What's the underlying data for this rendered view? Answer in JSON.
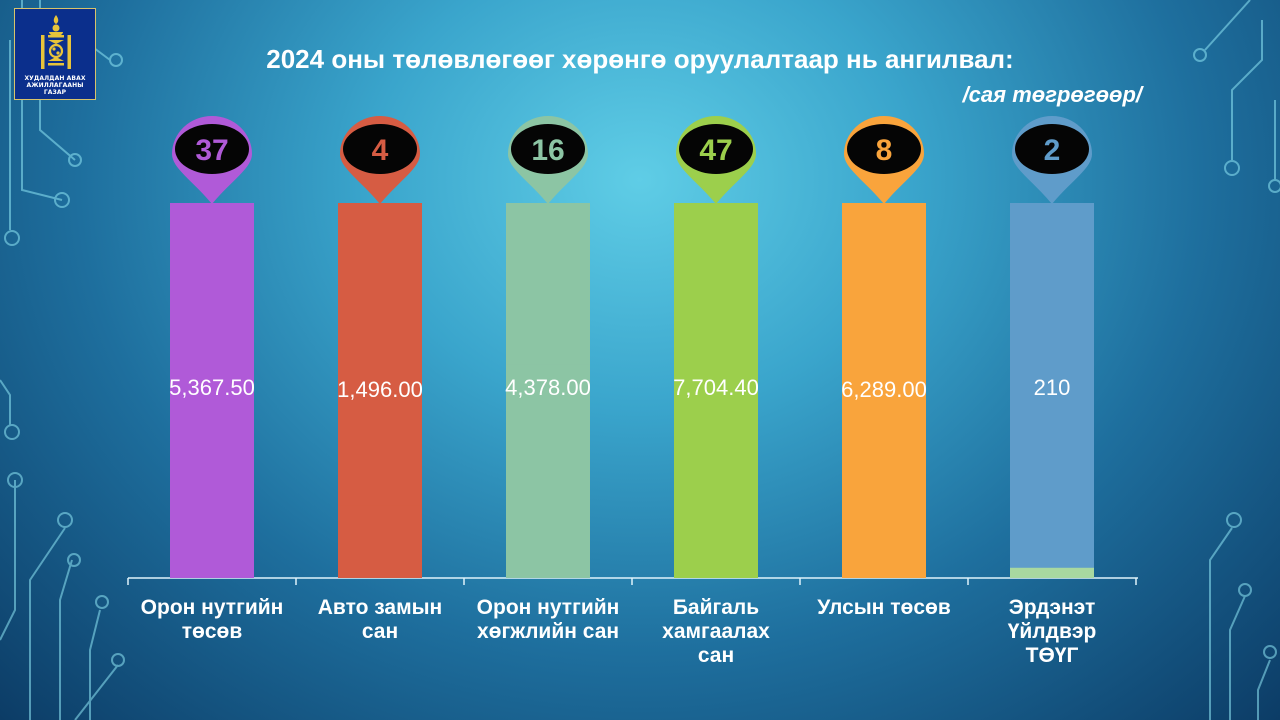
{
  "logo": {
    "text_line1": "ХУДАЛДАН АВАХ",
    "text_line2": "АЖИЛЛАГААНЫ ГАЗАР",
    "icon": "soyombo-emblem-icon"
  },
  "header": {
    "title": "2024 оны төлөвлөгөөг хөрөнгө оруулалтаар нь ангилвал:",
    "subtitle": "/сая төгрөгөөр/"
  },
  "chart_data": {
    "type": "bar",
    "title": "2024 оны төлөвлөгөөг хөрөнгө оруулалтаар нь ангилвал:",
    "subtitle": "/сая төгрөгөөр/",
    "categories": [
      "Орон нутгийн төсөв",
      "Авто замын сан",
      "Орон нутгийн хөгжлийн сан",
      "Байгаль хамгаалах сан",
      "Улсын төсөв",
      "Эрдэнэт Үйлдвэр ТӨҮГ"
    ],
    "category_lines": [
      [
        "Орон нутгийн",
        "төсөв"
      ],
      [
        "Авто замын",
        "сан"
      ],
      [
        "Орон нутгийн",
        "хөгжлийн сан"
      ],
      [
        "Байгаль",
        "хамгаалах",
        "сан"
      ],
      [
        "Улсын төсөв"
      ],
      [
        "Эрдэнэт",
        "Үйлдвэр",
        "ТӨҮГ"
      ]
    ],
    "values": [
      5367.5,
      1496.0,
      4378.0,
      7704.4,
      6289.0,
      210
    ],
    "value_labels": [
      "5,367.50",
      "1,496.00",
      "4,378.00",
      "7,704.40",
      "6,289.00",
      "210"
    ],
    "counts": [
      37,
      4,
      16,
      47,
      8,
      2
    ],
    "colors": [
      "#b05ad8",
      "#d65c43",
      "#8cc5a4",
      "#9ccf4c",
      "#f9a43c",
      "#5f9cca"
    ],
    "grid": false,
    "legend": "none"
  }
}
